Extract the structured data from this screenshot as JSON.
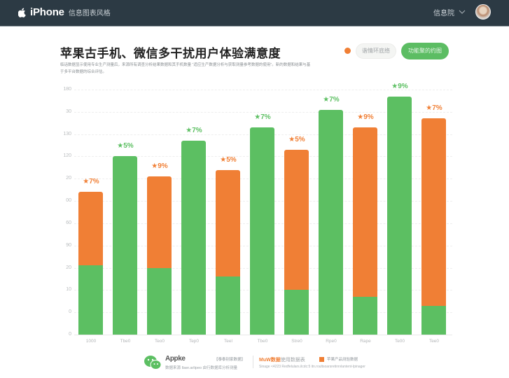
{
  "header": {
    "brand": "iPhone",
    "brand_sub": "信息图表风格",
    "user_name": "信息院",
    "icons": {
      "logo": "apple-icon",
      "dropdown": "chevron-down-icon",
      "avatar": "avatar"
    }
  },
  "page": {
    "title": "苹果古手机、微信多干扰用户体验满意度",
    "description": "临话数据显示使用专业生产测量后，来源所有调查分析结果数据和其手机数量 “适应生产数据分析与获取测量参考数据的使用”。新的数据和结果与基于多平台数据的综合评估。"
  },
  "controls": {
    "legend_dot_color": "#f07f35",
    "ghost_button": "谐情环底络",
    "primary_button": "功能聚的约图"
  },
  "chart_data": {
    "type": "bar",
    "title": "苹果古手机、微信多干扰用户体验满意度",
    "xlabel": "",
    "ylabel": "",
    "grid": true,
    "legend_position": "bottom",
    "ylim": [
      0,
      110
    ],
    "y_tick_labels": [
      "180",
      "30",
      "130",
      "120",
      "20",
      "00",
      "60",
      "90",
      "20",
      "10",
      "0",
      "0"
    ],
    "categories": [
      "1000",
      "Tbe0",
      "Teo0",
      "Tep0",
      "Teel",
      "Tbe0",
      "Stre0",
      "Rpe0",
      "Rape",
      "Te00",
      "Tee0"
    ],
    "colors": {
      "green": "#5cbf62",
      "orange": "#f07f35"
    },
    "series": [
      {
        "name": "green-segment",
        "values": [
          31,
          80,
          30,
          87,
          26,
          93,
          20,
          101,
          17,
          107,
          13
        ]
      },
      {
        "name": "orange-segment",
        "values": [
          33,
          0,
          41,
          0,
          48,
          0,
          63,
          0,
          76,
          0,
          84
        ]
      }
    ],
    "totals": [
      64,
      80,
      71,
      87,
      74,
      93,
      82,
      101,
      93,
      107,
      97
    ],
    "bar_labels": [
      "★7%",
      "★5%",
      "★9%",
      "★7%",
      "★5%",
      "★7%",
      "★5%",
      "★7%",
      "★9%",
      "★9%",
      "★7%"
    ],
    "bar_label_colors": [
      "orange",
      "green",
      "orange",
      "green",
      "orange",
      "green",
      "orange",
      "green",
      "orange",
      "green",
      "orange"
    ]
  },
  "footer": {
    "brand": "Appke",
    "note1": "【泰泰别家数据】",
    "sub1": "数据来源 Ilaer.arlipeo 由行数据库分析测量",
    "brand2": "MuW数据",
    "brand2_rest": "使用数据表",
    "note2": "苹果产品测验数据",
    "sub2": "Sinage <4223 Redfelulars.ilcdc:5 itn.roultsoarsretinrvlantent-Ipinager"
  }
}
